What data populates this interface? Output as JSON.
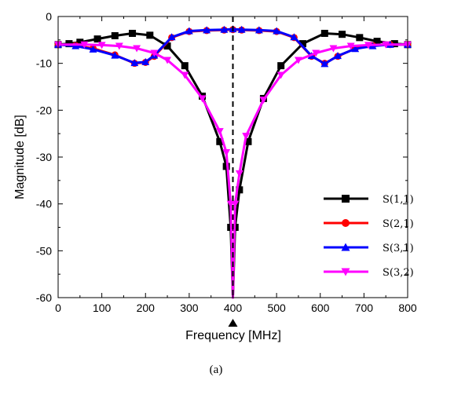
{
  "chart_data": {
    "type": "line",
    "xlabel": "Frequency [MHz]",
    "ylabel": "Magnitude [dB]",
    "xlim": [
      0,
      800
    ],
    "ylim": [
      -60,
      0
    ],
    "xticks": [
      0,
      100,
      200,
      300,
      400,
      500,
      600,
      700,
      800
    ],
    "yticks": [
      0,
      -10,
      -20,
      -30,
      -40,
      -50,
      -60
    ],
    "marker_line_x": 400,
    "legend_position": "lower-right",
    "caption": "(a)",
    "series": [
      {
        "name": "S(1,1)",
        "color": "#000000",
        "marker": "square",
        "x": [
          0,
          25,
          50,
          90,
          130,
          170,
          210,
          250,
          290,
          330,
          370,
          385,
          395,
          400,
          405,
          415,
          435,
          470,
          510,
          560,
          610,
          650,
          690,
          730,
          770,
          800
        ],
        "y": [
          -6,
          -5.8,
          -5.5,
          -4.8,
          -4.1,
          -3.6,
          -4.0,
          -6.3,
          -10.5,
          -17,
          -26.7,
          -32,
          -45,
          -60,
          -45,
          -37,
          -26.7,
          -17.5,
          -10.5,
          -5.8,
          -3.6,
          -3.8,
          -4.5,
          -5.3,
          -5.8,
          -6
        ]
      },
      {
        "name": "S(2,1)",
        "color": "#ff0000",
        "marker": "circle",
        "x": [
          0,
          40,
          80,
          130,
          175,
          200,
          220,
          260,
          300,
          340,
          380,
          400,
          420,
          460,
          500,
          540,
          580,
          610,
          640,
          680,
          720,
          760,
          800
        ],
        "y": [
          -6,
          -6.2,
          -6.8,
          -8.2,
          -10.0,
          -9.8,
          -8.5,
          -4.5,
          -3.2,
          -3.0,
          -2.9,
          -2.8,
          -2.9,
          -3.0,
          -3.2,
          -4.5,
          -8.5,
          -10.0,
          -8.5,
          -6.8,
          -6.2,
          -6.0,
          -6
        ]
      },
      {
        "name": "S(3,1)",
        "color": "#0000ff",
        "marker": "triangle-up",
        "x": [
          0,
          40,
          80,
          130,
          175,
          200,
          220,
          260,
          300,
          340,
          380,
          400,
          420,
          460,
          500,
          540,
          580,
          610,
          640,
          680,
          720,
          760,
          800
        ],
        "y": [
          -6,
          -6.3,
          -7.0,
          -8.3,
          -9.9,
          -9.7,
          -8.3,
          -4.4,
          -3.1,
          -2.9,
          -2.8,
          -2.7,
          -2.8,
          -2.9,
          -3.1,
          -4.4,
          -8.4,
          -10.1,
          -8.4,
          -6.9,
          -6.3,
          -6.0,
          -6
        ]
      },
      {
        "name": "S(3,2)",
        "color": "#ff00ff",
        "marker": "triangle-down",
        "x": [
          0,
          60,
          100,
          140,
          180,
          220,
          250,
          290,
          330,
          370,
          385,
          395,
          400,
          405,
          415,
          430,
          470,
          510,
          550,
          590,
          630,
          670,
          710,
          750,
          800
        ],
        "y": [
          -6,
          -6.0,
          -6.1,
          -6.3,
          -6.8,
          -7.8,
          -9.3,
          -12.5,
          -17.5,
          -24.5,
          -29,
          -40,
          -60,
          -40,
          -33.5,
          -25.5,
          -17.8,
          -12.5,
          -9.3,
          -7.8,
          -6.8,
          -6.3,
          -6.1,
          -6.0,
          -6
        ]
      }
    ]
  }
}
